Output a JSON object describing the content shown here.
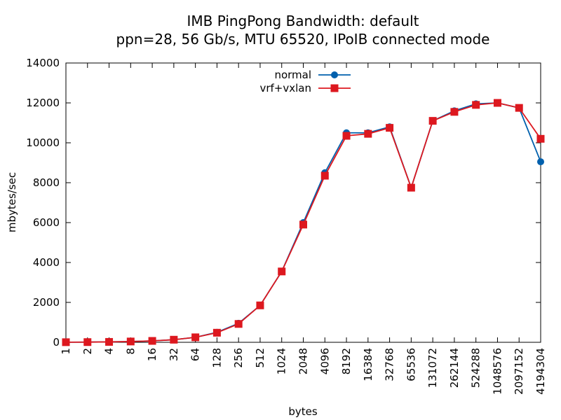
{
  "chart_data": {
    "type": "line",
    "title": "IMB PingPong Bandwidth: default",
    "subtitle": "ppn=28, 56 Gb/s, MTU 65520, IPoIB connected mode",
    "xlabel": "bytes",
    "ylabel": "mbytes/sec",
    "categories": [
      "1",
      "2",
      "4",
      "8",
      "16",
      "32",
      "64",
      "128",
      "256",
      "512",
      "1024",
      "2048",
      "4096",
      "8192",
      "16384",
      "32768",
      "65536",
      "131072",
      "262144",
      "524288",
      "1048576",
      "2097152",
      "4194304"
    ],
    "ylim": [
      0,
      14000
    ],
    "yticks": [
      "0",
      "2000",
      "4000",
      "6000",
      "8000",
      "10000",
      "12000",
      "14000"
    ],
    "grid": false,
    "legend_position": "top-center",
    "series": [
      {
        "name": "normal",
        "color": "#0060ad",
        "marker": "circle",
        "values": [
          5,
          10,
          20,
          40,
          70,
          130,
          250,
          500,
          950,
          1850,
          3550,
          6000,
          8500,
          10500,
          10500,
          10800,
          7750,
          11100,
          11600,
          11950,
          12000,
          11750,
          9050
        ]
      },
      {
        "name": "vrf+vxlan",
        "color": "#dd181f",
        "marker": "square",
        "values": [
          5,
          10,
          20,
          40,
          70,
          130,
          250,
          480,
          920,
          1850,
          3550,
          5900,
          8350,
          10350,
          10450,
          10750,
          7750,
          11100,
          11550,
          11900,
          12000,
          11750,
          10200
        ]
      }
    ]
  }
}
